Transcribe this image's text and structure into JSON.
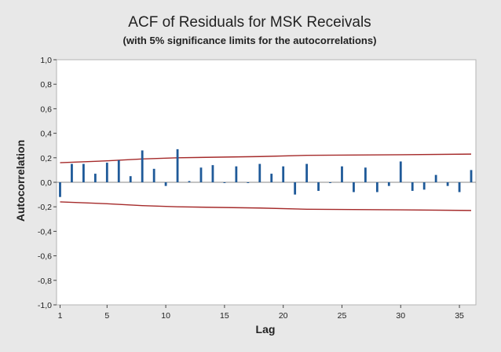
{
  "chart_data": {
    "type": "bar",
    "title": "ACF of Residuals for MSK Receivals",
    "subtitle": "(with 5% significance limits for the autocorrelations)",
    "xlabel": "Lag",
    "ylabel": "Autocorrelation",
    "xlim": [
      0.7,
      36.4
    ],
    "ylim": [
      -1.0,
      1.0
    ],
    "x_ticks": [
      1,
      5,
      10,
      15,
      20,
      25,
      30,
      35
    ],
    "y_ticks": [
      -1.0,
      -0.8,
      -0.6,
      -0.4,
      -0.2,
      0.0,
      0.2,
      0.4,
      0.6,
      0.8,
      1.0
    ],
    "y_tick_labels": [
      "-1,0",
      "-0,8",
      "-0,6",
      "-0,4",
      "-0,2",
      "0,0",
      "0,2",
      "0,4",
      "0,6",
      "0,8",
      "1,0"
    ],
    "lags": [
      1,
      2,
      3,
      4,
      5,
      6,
      7,
      8,
      9,
      10,
      11,
      12,
      13,
      14,
      15,
      16,
      17,
      18,
      19,
      20,
      21,
      22,
      23,
      24,
      25,
      26,
      27,
      28,
      29,
      30,
      31,
      32,
      33,
      34,
      35,
      36
    ],
    "acf": [
      -0.12,
      0.15,
      0.15,
      0.07,
      0.16,
      0.18,
      0.05,
      0.26,
      0.11,
      -0.03,
      0.27,
      0.01,
      0.12,
      0.14,
      0.0,
      0.13,
      0.0,
      0.15,
      0.07,
      0.13,
      -0.1,
      0.15,
      -0.07,
      0.0,
      0.13,
      -0.08,
      0.12,
      -0.08,
      -0.03,
      0.17,
      -0.07,
      -0.06,
      0.06,
      -0.03,
      -0.08,
      0.1
    ],
    "upper_limit": {
      "lags": [
        1,
        5,
        8,
        11,
        18,
        22,
        30,
        36
      ],
      "values": [
        0.16,
        0.175,
        0.19,
        0.2,
        0.21,
        0.22,
        0.225,
        0.23
      ]
    },
    "lower_limit": {
      "lags": [
        1,
        5,
        8,
        11,
        18,
        22,
        30,
        36
      ],
      "values": [
        -0.16,
        -0.175,
        -0.19,
        -0.2,
        -0.21,
        -0.22,
        -0.225,
        -0.23
      ]
    },
    "colors": {
      "bars": "#1f5a99",
      "limits": "#a52a2a",
      "zero_line": "#888888",
      "plot_background": "#ffffff",
      "figure_background": "#e8e8e8",
      "frame": "#b5b5b5"
    },
    "grid": false,
    "legend": "none"
  }
}
